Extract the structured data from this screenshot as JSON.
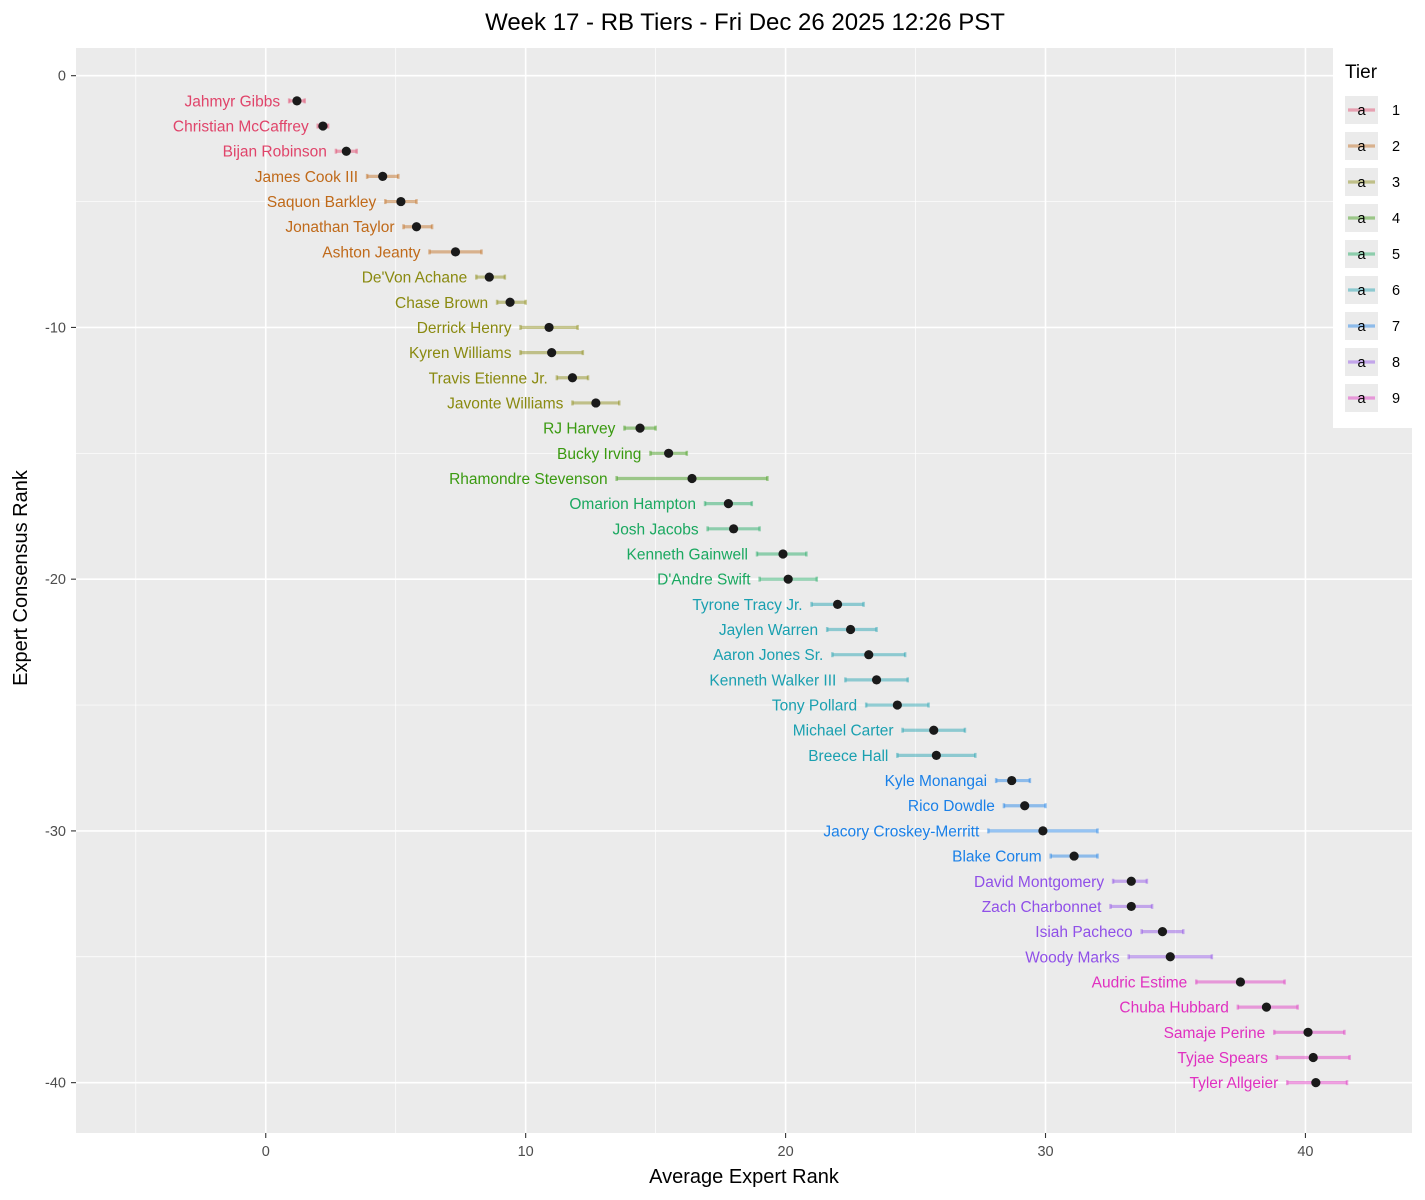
{
  "chart_data": {
    "type": "scatter",
    "title": "Week 17 - RB Tiers - Fri Dec 26 2025 12:26 PST",
    "xlabel": "Average Expert Rank",
    "ylabel": "Expert Consensus Rank",
    "xlim": [
      -7.3,
      44.1
    ],
    "ylim": [
      -42.0,
      1.1
    ],
    "x_ticks": [
      0,
      10,
      20,
      30,
      40
    ],
    "y_ticks": [
      0,
      -10,
      -20,
      -30,
      -40
    ],
    "grid": true,
    "legend": {
      "title": "Tier",
      "position": "right",
      "glyph": "a",
      "entries": [
        "1",
        "2",
        "3",
        "4",
        "5",
        "6",
        "7",
        "8",
        "9"
      ]
    },
    "tier_colors": {
      "1": "#e0446a",
      "2": "#c06a1a",
      "3": "#8a8a10",
      "4": "#3a9a10",
      "5": "#1aa860",
      "6": "#1aa0b0",
      "7": "#1a80e8",
      "8": "#9050e8",
      "9": "#e030c0"
    },
    "players": [
      {
        "name": "Jahmyr Gibbs",
        "tier": 1,
        "rank": -1,
        "avg": 1.2,
        "min": 0.9,
        "max": 1.5
      },
      {
        "name": "Christian McCaffrey",
        "tier": 1,
        "rank": -2,
        "avg": 2.2,
        "min": 2.0,
        "max": 2.4
      },
      {
        "name": "Bijan Robinson",
        "tier": 1,
        "rank": -3,
        "avg": 3.1,
        "min": 2.7,
        "max": 3.5
      },
      {
        "name": "James Cook III",
        "tier": 2,
        "rank": -4,
        "avg": 4.5,
        "min": 3.9,
        "max": 5.1
      },
      {
        "name": "Saquon Barkley",
        "tier": 2,
        "rank": -5,
        "avg": 5.2,
        "min": 4.6,
        "max": 5.8
      },
      {
        "name": "Jonathan Taylor",
        "tier": 2,
        "rank": -6,
        "avg": 5.8,
        "min": 5.3,
        "max": 6.4
      },
      {
        "name": "Ashton Jeanty",
        "tier": 2,
        "rank": -7,
        "avg": 7.3,
        "min": 6.3,
        "max": 8.3
      },
      {
        "name": "De'Von Achane",
        "tier": 3,
        "rank": -8,
        "avg": 8.6,
        "min": 8.1,
        "max": 9.2
      },
      {
        "name": "Chase Brown",
        "tier": 3,
        "rank": -9,
        "avg": 9.4,
        "min": 8.9,
        "max": 10.0
      },
      {
        "name": "Derrick Henry",
        "tier": 3,
        "rank": -10,
        "avg": 10.9,
        "min": 9.8,
        "max": 12.0
      },
      {
        "name": "Kyren Williams",
        "tier": 3,
        "rank": -11,
        "avg": 11.0,
        "min": 9.8,
        "max": 12.2
      },
      {
        "name": "Travis Etienne Jr.",
        "tier": 3,
        "rank": -12,
        "avg": 11.8,
        "min": 11.2,
        "max": 12.4
      },
      {
        "name": "Javonte Williams",
        "tier": 3,
        "rank": -13,
        "avg": 12.7,
        "min": 11.8,
        "max": 13.6
      },
      {
        "name": "RJ Harvey",
        "tier": 4,
        "rank": -14,
        "avg": 14.4,
        "min": 13.8,
        "max": 15.0
      },
      {
        "name": "Bucky Irving",
        "tier": 4,
        "rank": -15,
        "avg": 15.5,
        "min": 14.8,
        "max": 16.2
      },
      {
        "name": "Rhamondre Stevenson",
        "tier": 4,
        "rank": -16,
        "avg": 16.4,
        "min": 13.5,
        "max": 19.3
      },
      {
        "name": "Omarion Hampton",
        "tier": 5,
        "rank": -17,
        "avg": 17.8,
        "min": 16.9,
        "max": 18.7
      },
      {
        "name": "Josh Jacobs",
        "tier": 5,
        "rank": -18,
        "avg": 18.0,
        "min": 17.0,
        "max": 19.0
      },
      {
        "name": "Kenneth Gainwell",
        "tier": 5,
        "rank": -19,
        "avg": 19.9,
        "min": 18.9,
        "max": 20.8
      },
      {
        "name": "D'Andre Swift",
        "tier": 5,
        "rank": -20,
        "avg": 20.1,
        "min": 19.0,
        "max": 21.2
      },
      {
        "name": "Tyrone Tracy Jr.",
        "tier": 6,
        "rank": -21,
        "avg": 22.0,
        "min": 21.0,
        "max": 23.0
      },
      {
        "name": "Jaylen Warren",
        "tier": 6,
        "rank": -22,
        "avg": 22.5,
        "min": 21.6,
        "max": 23.5
      },
      {
        "name": "Aaron Jones Sr.",
        "tier": 6,
        "rank": -23,
        "avg": 23.2,
        "min": 21.8,
        "max": 24.6
      },
      {
        "name": "Kenneth Walker III",
        "tier": 6,
        "rank": -24,
        "avg": 23.5,
        "min": 22.3,
        "max": 24.7
      },
      {
        "name": "Tony Pollard",
        "tier": 6,
        "rank": -25,
        "avg": 24.3,
        "min": 23.1,
        "max": 25.5
      },
      {
        "name": "Michael Carter",
        "tier": 6,
        "rank": -26,
        "avg": 25.7,
        "min": 24.5,
        "max": 26.9
      },
      {
        "name": "Breece Hall",
        "tier": 6,
        "rank": -27,
        "avg": 25.8,
        "min": 24.3,
        "max": 27.3
      },
      {
        "name": "Kyle Monangai",
        "tier": 7,
        "rank": -28,
        "avg": 28.7,
        "min": 28.1,
        "max": 29.4
      },
      {
        "name": "Rico Dowdle",
        "tier": 7,
        "rank": -29,
        "avg": 29.2,
        "min": 28.4,
        "max": 30.0
      },
      {
        "name": "Jacory Croskey-Merritt",
        "tier": 7,
        "rank": -30,
        "avg": 29.9,
        "min": 27.8,
        "max": 32.0
      },
      {
        "name": "Blake Corum",
        "tier": 7,
        "rank": -31,
        "avg": 31.1,
        "min": 30.2,
        "max": 32.0
      },
      {
        "name": "David Montgomery",
        "tier": 8,
        "rank": -32,
        "avg": 33.3,
        "min": 32.6,
        "max": 33.9
      },
      {
        "name": "Zach Charbonnet",
        "tier": 8,
        "rank": -33,
        "avg": 33.3,
        "min": 32.5,
        "max": 34.1
      },
      {
        "name": "Isiah Pacheco",
        "tier": 8,
        "rank": -34,
        "avg": 34.5,
        "min": 33.7,
        "max": 35.3
      },
      {
        "name": "Woody Marks",
        "tier": 8,
        "rank": -35,
        "avg": 34.8,
        "min": 33.2,
        "max": 36.4
      },
      {
        "name": "Audric Estime",
        "tier": 9,
        "rank": -36,
        "avg": 37.5,
        "min": 35.8,
        "max": 39.2
      },
      {
        "name": "Chuba Hubbard",
        "tier": 9,
        "rank": -37,
        "avg": 38.5,
        "min": 37.4,
        "max": 39.7
      },
      {
        "name": "Samaje Perine",
        "tier": 9,
        "rank": -38,
        "avg": 40.1,
        "min": 38.8,
        "max": 41.5
      },
      {
        "name": "Tyjae Spears",
        "tier": 9,
        "rank": -39,
        "avg": 40.3,
        "min": 38.9,
        "max": 41.7
      },
      {
        "name": "Tyler Allgeier",
        "tier": 9,
        "rank": -40,
        "avg": 40.4,
        "min": 39.3,
        "max": 41.6
      }
    ]
  }
}
